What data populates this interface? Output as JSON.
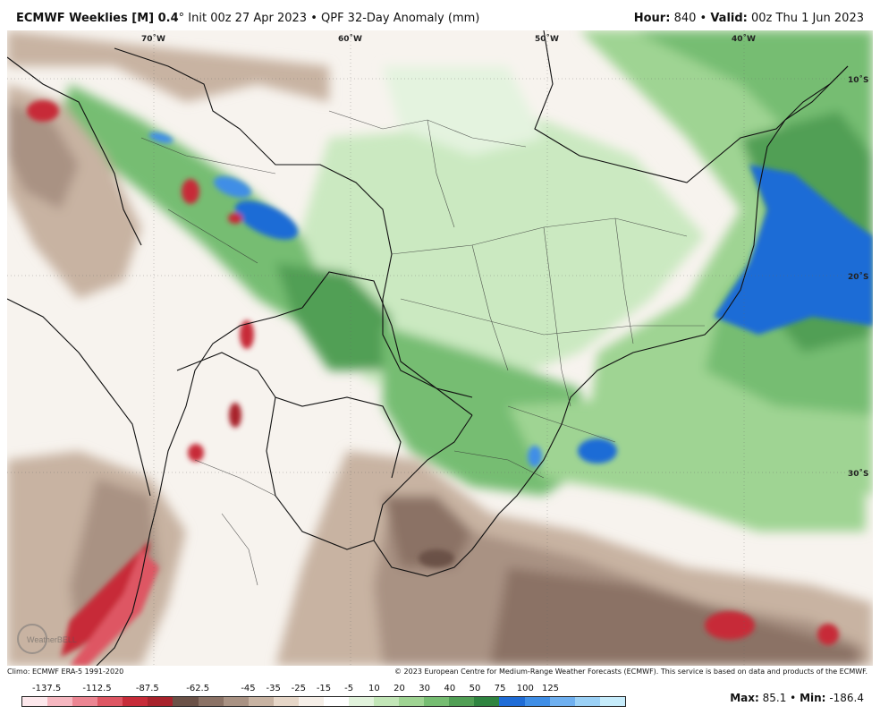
{
  "header": {
    "title_bold": "ECMWF Weeklies [M] 0.4",
    "title_rest": "° Init 00z 27 Apr 2023 • QPF 32-Day Anomaly (mm)",
    "hour_label": "Hour:",
    "hour_value": "840",
    "valid_label": "Valid:",
    "valid_value": "00z Thu 1 Jun 2023"
  },
  "map": {
    "longitude_labels": [
      "70˚W",
      "60˚W",
      "50˚W",
      "40˚W"
    ],
    "latitude_labels": [
      "10˚S",
      "20˚S",
      "30˚S"
    ],
    "watermark": "WeatherBELL"
  },
  "credits": {
    "left": "Climo: ECMWF ERA-5 1991-2020",
    "right": "© 2023 European Centre for Medium-Range Weather Forecasts (ECMWF). This service is based on data and products of the ECMWF."
  },
  "legend": {
    "tick_labels": [
      "-137.5",
      "-112.5",
      "-87.5",
      "-62.5",
      "-45",
      "-35",
      "-25",
      "-15",
      "-5",
      "10",
      "20",
      "30",
      "40",
      "50",
      "75",
      "100",
      "125"
    ],
    "colors": [
      "#fde8ec",
      "#f6b7c0",
      "#ec8592",
      "#de5663",
      "#c72c39",
      "#a8232c",
      "#6b5147",
      "#8b7265",
      "#a99283",
      "#c8b3a2",
      "#e6d6c7",
      "#f6efe8",
      "#ffffff",
      "#e2f3dc",
      "#c2e6b7",
      "#9fd493",
      "#76bd72",
      "#519f55",
      "#2f8440",
      "#1f6cd6",
      "#3f8ee6",
      "#6fb0f0",
      "#9bd1f6",
      "#c6ecfb"
    ]
  },
  "stats": {
    "max_label": "Max:",
    "max_value": "85.1",
    "min_label": "Min:",
    "min_value": "-186.4"
  }
}
